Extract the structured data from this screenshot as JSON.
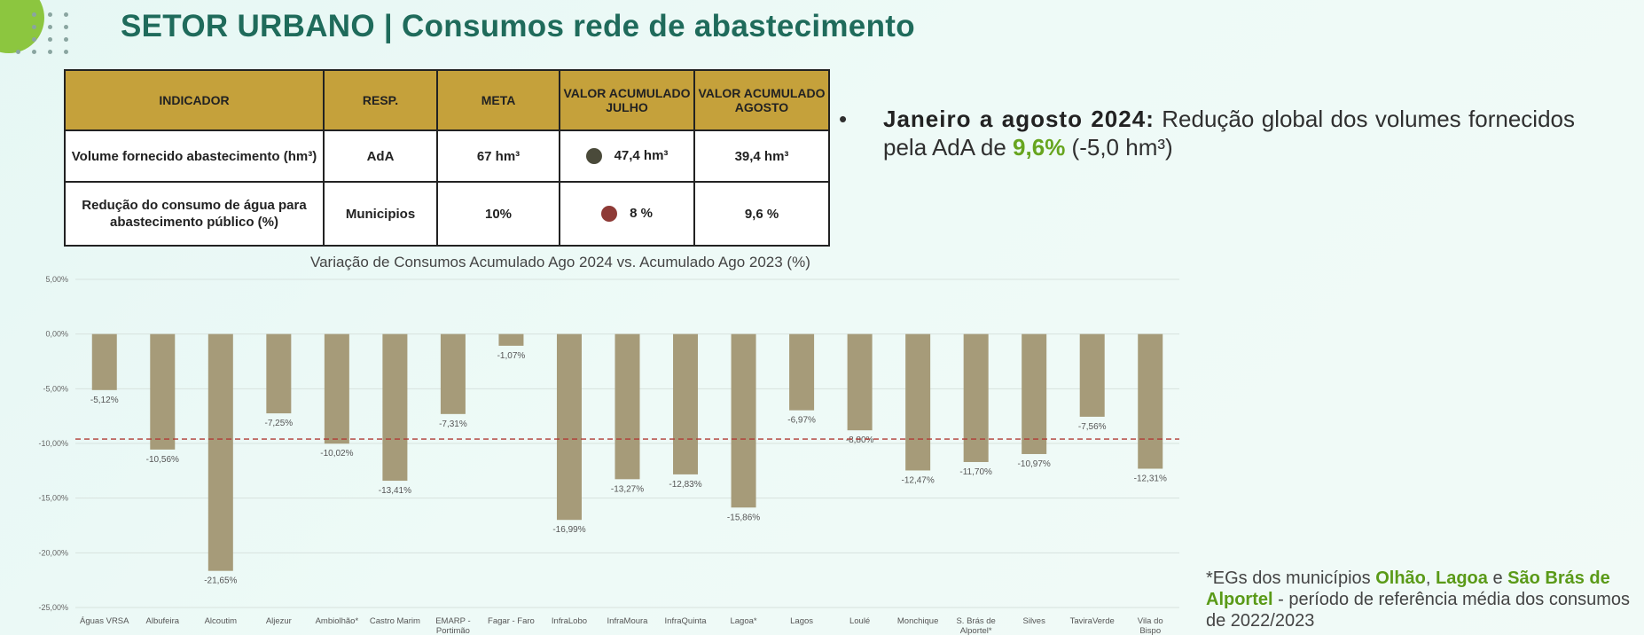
{
  "header": {
    "title": "SETOR URBANO | Consumos rede de abastecimento"
  },
  "table": {
    "headers": [
      "INDICADOR",
      "RESP.",
      "META",
      "VALOR ACUMULADO JULHO",
      "VALOR ACUMULADO AGOSTO"
    ],
    "rows": [
      {
        "indicador": "Volume fornecido abastecimento (hm³)",
        "resp": "AdA",
        "meta": "67 hm³",
        "julho": "47,4 hm³",
        "julho_status_color": "#4a4a3a",
        "agosto": "39,4 hm³"
      },
      {
        "indicador": "Redução do consumo de água para abastecimento público (%)",
        "resp": "Municipios",
        "meta": "10%",
        "julho": "8 %",
        "julho_status_color": "#8e3a36",
        "agosto": "9,6 %"
      }
    ]
  },
  "bullet": {
    "lead": "Janeiro a agosto 2024:",
    "text_before": "Redução global dos volumes fornecidos pela AdA de",
    "highlight": "9,6%",
    "text_after": "(-5,0 hm³)"
  },
  "chart_data": {
    "type": "bar",
    "title": "Variação de Consumos Acumulado Ago 2024 vs. Acumulado Ago 2023 (%)",
    "categories": [
      "Águas VRSA",
      "Albufeira",
      "Alcoutim",
      "Aljezur",
      "Ambiolhão*",
      "Castro Marim",
      "EMARP - Portimão",
      "Fagar - Faro",
      "InfraLobo",
      "InfraMoura",
      "InfraQuinta",
      "Lagoa*",
      "Lagos",
      "Loulé",
      "Monchique",
      "S. Brás de Alportel*",
      "Silves",
      "TaviraVerde",
      "Vila do Bispo"
    ],
    "values": [
      -5.12,
      -10.56,
      -21.65,
      -7.25,
      -10.02,
      -13.41,
      -7.31,
      -1.07,
      -16.99,
      -13.27,
      -12.83,
      -15.86,
      -6.97,
      -8.8,
      -12.47,
      -11.7,
      -10.97,
      -7.56,
      -12.31
    ],
    "data_labels": [
      "-5,12%",
      "-10,56%",
      "-21,65%",
      "-7,25%",
      "-10,02%",
      "-13,41%",
      "-7,31%",
      "-1,07%",
      "-16,99%",
      "-13,27%",
      "-12,83%",
      "-15,86%",
      "-6,97%",
      "-8,80%",
      "-12,47%",
      "-11,70%",
      "-10,97%",
      "-7,56%",
      "-12,31%"
    ],
    "ylim": [
      -25,
      5
    ],
    "yticks": [
      "5,00%",
      "0,00%",
      "-5,00%",
      "-10,00%",
      "-15,00%",
      "-20,00%",
      "-25,00%"
    ],
    "reference_line": -9.6,
    "colors": {
      "bar": "#a69b79",
      "reference_line": "#b03a34"
    },
    "grid": true
  },
  "footnote": {
    "prefix": "*EGs dos municípios",
    "m1": "Olhão",
    "sep1": ",",
    "m2": "Lagoa",
    "sep2": "e",
    "m3": "São Brás de Alportel",
    "suffix": "- período de referência média dos consumos de 2022/2023"
  }
}
